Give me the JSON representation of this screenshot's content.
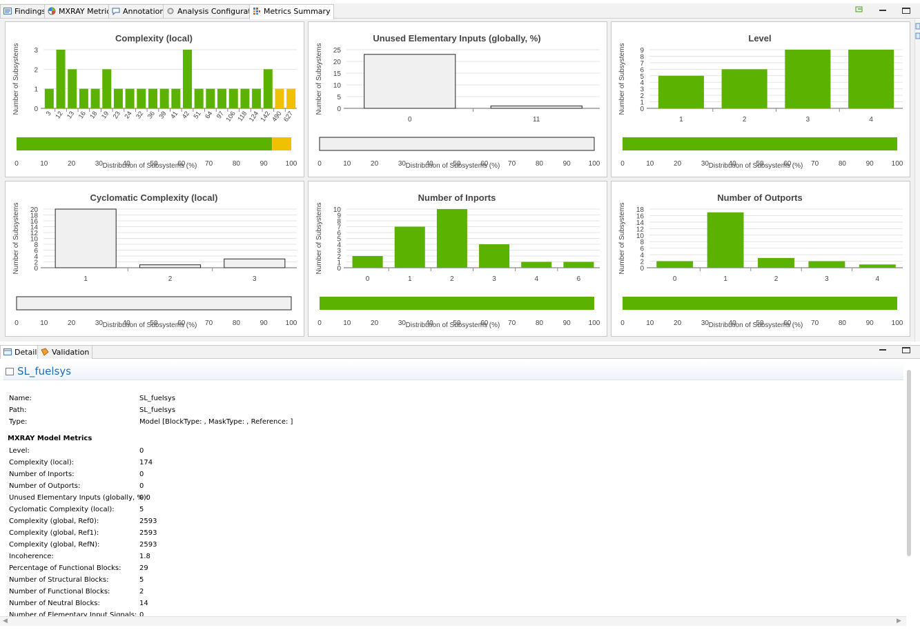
{
  "top_tabs": [
    {
      "label": "Findings",
      "icon": "findings-icon",
      "active": false
    },
    {
      "label": "MXRAY Metrics",
      "icon": "globe-icon",
      "active": false
    },
    {
      "label": "Annotations",
      "icon": "annotation-icon",
      "active": false
    },
    {
      "label": "Analysis Configuration",
      "icon": "config-icon",
      "active": false
    },
    {
      "label": "Metrics Summary",
      "icon": "metrics-icon",
      "active": true
    }
  ],
  "bottom_tabs": [
    {
      "label": "Details",
      "icon": "details-icon",
      "active": true
    },
    {
      "label": "Validation",
      "icon": "validation-icon",
      "active": false
    }
  ],
  "colors": {
    "green": "#5cb200",
    "yellow": "#eec200",
    "gray": "#f0f0f0"
  },
  "charts": [
    {
      "title": "Complexity (local)",
      "ylabel": "Number of Subsystems",
      "xlabel": "Distribution of Subsystems (%)",
      "ymax": 3,
      "yticks": [
        0,
        1,
        2,
        3
      ],
      "rotate_labels": true,
      "categories": [
        "3",
        "12",
        "13",
        "16",
        "18",
        "19",
        "23",
        "24",
        "32",
        "36",
        "39",
        "41",
        "42",
        "51",
        "64",
        "97",
        "106",
        "118",
        "124",
        "142",
        "490",
        "627"
      ],
      "values": [
        1,
        3,
        2,
        1,
        1,
        2,
        1,
        1,
        1,
        1,
        1,
        1,
        3,
        1,
        1,
        1,
        1,
        1,
        1,
        2,
        1,
        1
      ],
      "bar_colors": [
        "green",
        "green",
        "green",
        "green",
        "green",
        "green",
        "green",
        "green",
        "green",
        "green",
        "green",
        "green",
        "green",
        "green",
        "green",
        "green",
        "green",
        "green",
        "green",
        "green",
        "yellow",
        "yellow"
      ],
      "distribution": [
        {
          "color": "green",
          "pct": 93
        },
        {
          "color": "yellow",
          "pct": 7
        }
      ],
      "dist_ticks": [
        "0",
        "10",
        "20",
        "30",
        "40",
        "50",
        "60",
        "70",
        "80",
        "90",
        "100"
      ]
    },
    {
      "title": "Unused Elementary Inputs (globally, %)",
      "ylabel": "Number of Subsystems",
      "xlabel": "Distribution of Subsystems (%)",
      "ymax": 25,
      "yticks": [
        0,
        5,
        10,
        15,
        20,
        25
      ],
      "rotate_labels": false,
      "categories": [
        "0",
        "11"
      ],
      "values": [
        23,
        1
      ],
      "bar_colors": [
        "gray",
        "gray"
      ],
      "distribution": [
        {
          "color": "gray",
          "pct": 100
        }
      ],
      "dist_ticks": [
        "0",
        "10",
        "20",
        "30",
        "40",
        "50",
        "60",
        "70",
        "80",
        "90",
        "100"
      ]
    },
    {
      "title": "Level",
      "ylabel": "Number of Subsystems",
      "xlabel": "Distribution of Subsystems (%)",
      "ymax": 9,
      "yticks": [
        0,
        1,
        2,
        3,
        4,
        5,
        6,
        7,
        8,
        9
      ],
      "rotate_labels": false,
      "categories": [
        "1",
        "2",
        "3",
        "4"
      ],
      "values": [
        5,
        6,
        9,
        9
      ],
      "bar_colors": [
        "green",
        "green",
        "green",
        "green"
      ],
      "distribution": [
        {
          "color": "green",
          "pct": 100
        }
      ],
      "dist_ticks": [
        "0",
        "10",
        "20",
        "30",
        "40",
        "50",
        "60",
        "70",
        "80",
        "90",
        "100"
      ]
    },
    {
      "title": "Cyclomatic Complexity (local)",
      "ylabel": "Number of Subsystems",
      "xlabel": "Distribution of Subsystems (%)",
      "ymax": 20,
      "yticks": [
        0,
        2,
        4,
        6,
        8,
        10,
        12,
        14,
        16,
        18,
        20
      ],
      "rotate_labels": false,
      "categories": [
        "1",
        "2",
        "3"
      ],
      "values": [
        20,
        1,
        3
      ],
      "bar_colors": [
        "gray",
        "gray",
        "gray"
      ],
      "distribution": [
        {
          "color": "gray",
          "pct": 100
        }
      ],
      "dist_ticks": [
        "0",
        "10",
        "20",
        "30",
        "40",
        "50",
        "60",
        "70",
        "80",
        "90",
        "100"
      ]
    },
    {
      "title": "Number of Inports",
      "ylabel": "Number of Subsystems",
      "xlabel": "Distribution of Subsystems (%)",
      "ymax": 10,
      "yticks": [
        0,
        1,
        2,
        3,
        4,
        5,
        6,
        7,
        8,
        9,
        10
      ],
      "rotate_labels": false,
      "categories": [
        "0",
        "1",
        "2",
        "3",
        "4",
        "6"
      ],
      "values": [
        2,
        7,
        10,
        4,
        1,
        1
      ],
      "bar_colors": [
        "green",
        "green",
        "green",
        "green",
        "green",
        "green"
      ],
      "distribution": [
        {
          "color": "green",
          "pct": 100
        }
      ],
      "dist_ticks": [
        "0",
        "10",
        "20",
        "30",
        "40",
        "50",
        "60",
        "70",
        "80",
        "90",
        "100"
      ]
    },
    {
      "title": "Number of Outports",
      "ylabel": "Number of Subsystems",
      "xlabel": "Distribution of Subsystems (%)",
      "ymax": 18,
      "yticks": [
        0,
        2,
        4,
        6,
        8,
        10,
        12,
        14,
        16,
        18
      ],
      "rotate_labels": false,
      "categories": [
        "0",
        "1",
        "2",
        "3",
        "4"
      ],
      "values": [
        2,
        17,
        3,
        2,
        1
      ],
      "bar_colors": [
        "green",
        "green",
        "green",
        "green",
        "green"
      ],
      "distribution": [
        {
          "color": "green",
          "pct": 100
        }
      ],
      "dist_ticks": [
        "0",
        "10",
        "20",
        "30",
        "40",
        "50",
        "60",
        "70",
        "80",
        "90",
        "100"
      ]
    }
  ],
  "details": {
    "title": "SL_fuelsys",
    "basic": [
      {
        "label": "Name:",
        "value": "SL_fuelsys"
      },
      {
        "label": "Path:",
        "value": "SL_fuelsys"
      },
      {
        "label": "Type:",
        "value": "Model [BlockType: , MaskType: , Reference: ]"
      }
    ],
    "section_title": "MXRAY Model Metrics",
    "metrics": [
      {
        "label": "Level:",
        "value": "0"
      },
      {
        "label": "Complexity (local):",
        "value": "174"
      },
      {
        "label": "Number of Inports:",
        "value": "0"
      },
      {
        "label": "Number of Outports:",
        "value": "0"
      },
      {
        "label": "Unused Elementary Inputs (globally, %):",
        "value": "0.0"
      },
      {
        "label": "Cyclomatic Complexity (local):",
        "value": "5"
      },
      {
        "label": "Complexity (global, Ref0):",
        "value": "2593"
      },
      {
        "label": "Complexity (global, Ref1):",
        "value": "2593"
      },
      {
        "label": "Complexity (global, RefN):",
        "value": "2593"
      },
      {
        "label": "Incoherence:",
        "value": "1.8"
      },
      {
        "label": "Percentage of Functional Blocks:",
        "value": "29"
      },
      {
        "label": "Number of Structural Blocks:",
        "value": "5"
      },
      {
        "label": "Number of Functional Blocks:",
        "value": "2"
      },
      {
        "label": "Number of Neutral Blocks:",
        "value": "14"
      },
      {
        "label": "Number of Elementary Input Signals:",
        "value": "0"
      }
    ]
  },
  "chart_data": [
    {
      "type": "bar",
      "title": "Complexity (local)",
      "xlabel": "Distribution of Subsystems (%)",
      "ylabel": "Number of Subsystems",
      "categories": [
        "3",
        "12",
        "13",
        "16",
        "18",
        "19",
        "23",
        "24",
        "32",
        "36",
        "39",
        "41",
        "42",
        "51",
        "64",
        "97",
        "106",
        "118",
        "124",
        "142",
        "490",
        "627"
      ],
      "values": [
        1,
        3,
        2,
        1,
        1,
        2,
        1,
        1,
        1,
        1,
        1,
        1,
        3,
        1,
        1,
        1,
        1,
        1,
        1,
        2,
        1,
        1
      ],
      "ylim": [
        0,
        3
      ]
    },
    {
      "type": "bar",
      "title": "Unused Elementary Inputs (globally, %)",
      "xlabel": "Distribution of Subsystems (%)",
      "ylabel": "Number of Subsystems",
      "categories": [
        "0",
        "11"
      ],
      "values": [
        23,
        1
      ],
      "ylim": [
        0,
        25
      ]
    },
    {
      "type": "bar",
      "title": "Level",
      "xlabel": "Distribution of Subsystems (%)",
      "ylabel": "Number of Subsystems",
      "categories": [
        "1",
        "2",
        "3",
        "4"
      ],
      "values": [
        5,
        6,
        9,
        9
      ],
      "ylim": [
        0,
        9
      ]
    },
    {
      "type": "bar",
      "title": "Cyclomatic Complexity (local)",
      "xlabel": "Distribution of Subsystems (%)",
      "ylabel": "Number of Subsystems",
      "categories": [
        "1",
        "2",
        "3"
      ],
      "values": [
        20,
        1,
        3
      ],
      "ylim": [
        0,
        20
      ]
    },
    {
      "type": "bar",
      "title": "Number of Inports",
      "xlabel": "Distribution of Subsystems (%)",
      "ylabel": "Number of Subsystems",
      "categories": [
        "0",
        "1",
        "2",
        "3",
        "4",
        "6"
      ],
      "values": [
        2,
        7,
        10,
        4,
        1,
        1
      ],
      "ylim": [
        0,
        10
      ]
    },
    {
      "type": "bar",
      "title": "Number of Outports",
      "xlabel": "Distribution of Subsystems (%)",
      "ylabel": "Number of Subsystems",
      "categories": [
        "0",
        "1",
        "2",
        "3",
        "4"
      ],
      "values": [
        2,
        17,
        3,
        2,
        1
      ],
      "ylim": [
        0,
        18
      ]
    }
  ]
}
